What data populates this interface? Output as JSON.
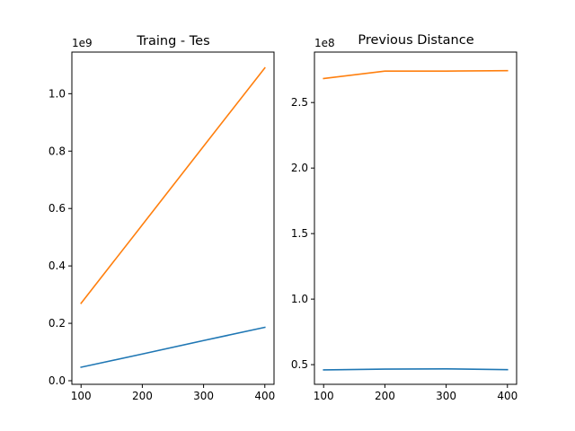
{
  "chart_data": [
    {
      "type": "line",
      "title": "Traing - Tes",
      "xlabel": "",
      "ylabel": "",
      "x": [
        100,
        200,
        300,
        400
      ],
      "xlim": [
        85,
        415
      ],
      "ylim": [
        -0.0125,
        1.145
      ],
      "y_offset_text": "1e9",
      "x_ticks": [
        100,
        200,
        300,
        400
      ],
      "x_tick_labels": [
        "100",
        "200",
        "300",
        "400"
      ],
      "y_ticks": [
        0.0,
        0.2,
        0.4,
        0.6,
        0.8,
        1.0
      ],
      "y_tick_labels": [
        "0.0",
        "0.2",
        "0.4",
        "0.6",
        "0.8",
        "1.0"
      ],
      "grid": false,
      "series": [
        {
          "color": "#1f77b4",
          "values": [
            0.047,
            0.093,
            0.14,
            0.186
          ]
        },
        {
          "color": "#ff7f0e",
          "values": [
            0.27,
            0.543,
            0.817,
            1.09
          ]
        }
      ]
    },
    {
      "type": "line",
      "title": "Previous Distance",
      "xlabel": "",
      "ylabel": "",
      "x": [
        100,
        200,
        300,
        400
      ],
      "xlim": [
        85,
        415
      ],
      "ylim": [
        0.35,
        2.885
      ],
      "y_offset_text": "1e8",
      "x_ticks": [
        100,
        200,
        300,
        400
      ],
      "x_tick_labels": [
        "100",
        "200",
        "300",
        "400"
      ],
      "y_ticks": [
        0.5,
        1.0,
        1.5,
        2.0,
        2.5
      ],
      "y_tick_labels": [
        "0.5",
        "1.0",
        "1.5",
        "2.0",
        "2.5"
      ],
      "grid": false,
      "series": [
        {
          "color": "#1f77b4",
          "values": [
            0.46,
            0.466,
            0.468,
            0.462
          ]
        },
        {
          "color": "#ff7f0e",
          "values": [
            2.683,
            2.74,
            2.74,
            2.743
          ]
        }
      ]
    }
  ]
}
